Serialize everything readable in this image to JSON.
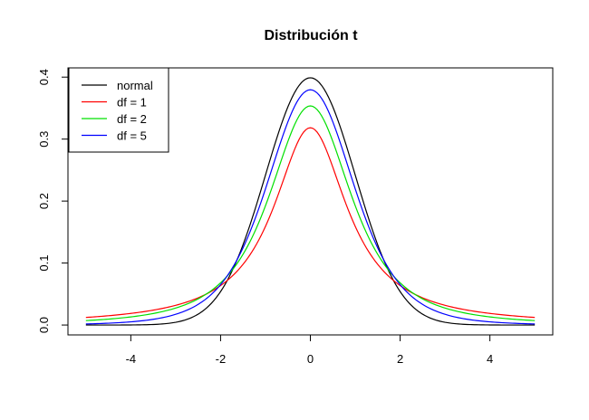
{
  "chart_data": {
    "type": "line",
    "title": "Distribución t",
    "xlabel": "",
    "ylabel": "",
    "xlim": [
      -5,
      5
    ],
    "ylim": [
      0,
      0.4
    ],
    "xticks": [
      -4,
      -2,
      0,
      2,
      4
    ],
    "xtick_labels": [
      "-4",
      "-2",
      "0",
      "2",
      "4"
    ],
    "yticks": [
      0.0,
      0.1,
      0.2,
      0.3,
      0.4
    ],
    "ytick_labels": [
      "0.0",
      "0.1",
      "0.2",
      "0.3",
      "0.4"
    ],
    "grid": false,
    "legend_position": "top-left",
    "x": [
      -5,
      -4,
      -3,
      -2,
      -1,
      0,
      1,
      2,
      3,
      4,
      5
    ],
    "series": [
      {
        "name": "normal",
        "dist": "normal",
        "color": "#000000",
        "values": [
          1.5e-06,
          0.000134,
          0.00443,
          0.054,
          0.242,
          0.3989,
          0.242,
          0.054,
          0.00443,
          0.000134,
          1.5e-06
        ]
      },
      {
        "name": "df = 1",
        "dist": "t",
        "df": 1,
        "color": "#ff0000",
        "values": [
          0.0122,
          0.0187,
          0.0318,
          0.0637,
          0.1592,
          0.3183,
          0.1592,
          0.0637,
          0.0318,
          0.0187,
          0.0122
        ]
      },
      {
        "name": "df = 2",
        "dist": "t",
        "df": 2,
        "color": "#00e000",
        "values": [
          0.0071,
          0.0131,
          0.0274,
          0.068,
          0.1925,
          0.3536,
          0.1925,
          0.068,
          0.0274,
          0.0131,
          0.0071
        ]
      },
      {
        "name": "df = 5",
        "dist": "t",
        "df": 5,
        "color": "#0000ff",
        "values": [
          0.0018,
          0.0051,
          0.0173,
          0.0651,
          0.2197,
          0.3796,
          0.2197,
          0.0651,
          0.0173,
          0.0051,
          0.0018
        ]
      }
    ]
  }
}
